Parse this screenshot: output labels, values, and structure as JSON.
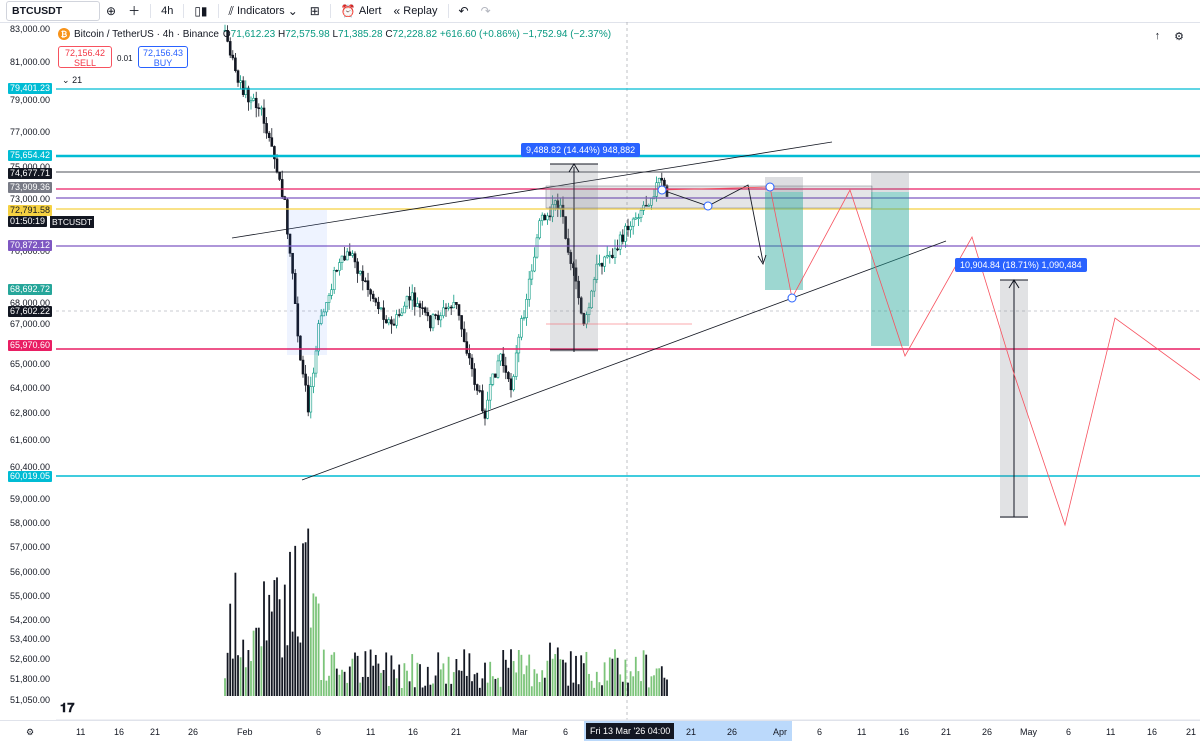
{
  "toolbar": {
    "symbol": "BTCUSDT",
    "interval": "4h",
    "indicators_label": "Indicators",
    "alert_label": "Alert",
    "replay_label": "Replay"
  },
  "legend": {
    "icon_letter": "₿",
    "title": "Bitcoin / TetherUS · 4h · Binance",
    "open_label": "O",
    "open": "71,612.23",
    "high_label": "H",
    "high": "72,575.98",
    "low_label": "L",
    "low": "71,385.28",
    "close_label": "C",
    "close": "72,228.82",
    "change": "+616.60 (+0.86%)",
    "extra": "−1,752.94 (−2.37%)"
  },
  "trade": {
    "sell_price": "72,156.42",
    "sell_label": "SELL",
    "spread": "0.01",
    "buy_price": "72,156.43",
    "buy_label": "BUY"
  },
  "indicator_count": "21",
  "y_ticks": [
    "83,000.00",
    "81,000.00",
    "79,000.00",
    "77,000.00",
    "75,000.00",
    "73,000.00",
    "70,000.00",
    "68,000.00",
    "67,000.00",
    "65,000.00",
    "64,000.00",
    "62,800.00",
    "61,600.00",
    "60,400.00",
    "59,000.00",
    "58,000.00",
    "57,000.00",
    "56,000.00",
    "55,000.00",
    "54,200.00",
    "53,400.00",
    "52,600.00",
    "51,800.00",
    "51,050.00"
  ],
  "price_tags": {
    "t79401": "79,401.23",
    "t75654": "75,654.42",
    "t74677": "74,677.71",
    "t73909": "73,909.36",
    "t72791": "72,791.58",
    "countdown": "01:50:19",
    "sym": "BTCUSDT",
    "t70872": "70,872.12",
    "t68692": "68,692.72",
    "t67602": "67,602.22",
    "t65970": "65,970.60",
    "t60019": "60,019.05"
  },
  "measure1": "9,488.82 (14.44%) 948,882",
  "measure2": "10,904.84 (18.71%) 1,090,484",
  "x_ticks": [
    "11",
    "16",
    "21",
    "26",
    "Feb",
    "6",
    "11",
    "16",
    "21",
    "Mar",
    "6",
    "21",
    "26",
    "Apr",
    "6",
    "11",
    "16",
    "21",
    "26",
    "May",
    "6",
    "11",
    "16",
    "21"
  ],
  "x_cursor": "Fri 13 Mar '26   04:00",
  "colors": {
    "up": "#089981",
    "down": "#131722",
    "vol_up": "#7cc47a",
    "vol_down": "#131722",
    "teal": "#00bcd4",
    "pink": "#e91e63",
    "purple": "#7e57c2",
    "yellow": "#f5d142",
    "magenta": "#9c27b0",
    "target_zone": "#26a69a",
    "path_red": "#f7525f"
  }
}
